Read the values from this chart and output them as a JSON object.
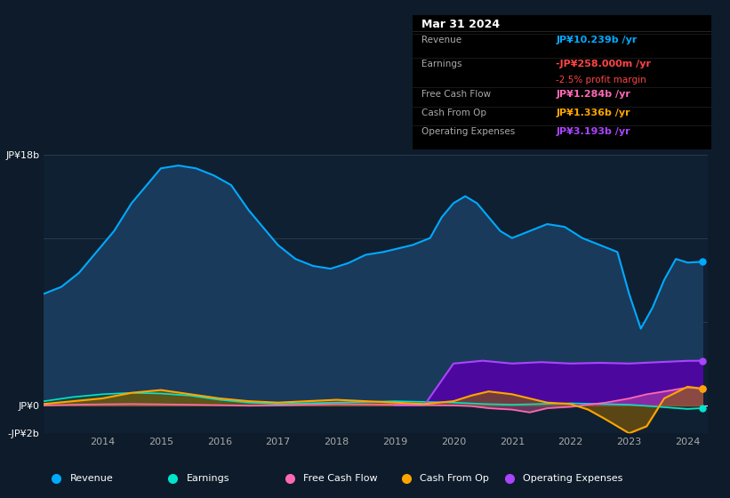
{
  "bg_color": "#0d1b2a",
  "plot_bg_color": "#0d1b2a",
  "chart_area_color": "#0f2033",
  "title": "Mar 31 2024",
  "table": {
    "Revenue": {
      "value": "JP¥10.239b /yr",
      "color": "#00aaff"
    },
    "Earnings": {
      "value": "-JP¥258.000m /yr",
      "color": "#ff4444",
      "sub": "-2.5% profit margin",
      "sub_color": "#ff4444"
    },
    "Free Cash Flow": {
      "value": "JP¥1.284b /yr",
      "color": "#ff69b4"
    },
    "Cash From Op": {
      "value": "JP¥1.336b /yr",
      "color": "#ffa500"
    },
    "Operating Expenses": {
      "value": "JP¥3.193b /yr",
      "color": "#aa44ff"
    }
  },
  "ylim": [
    -2,
    18
  ],
  "yticks": [
    -2,
    0,
    18
  ],
  "ytick_labels": [
    "-JP¥2b",
    "JP¥0",
    "JP¥18b"
  ],
  "xlabel_years": [
    2014,
    2015,
    2016,
    2017,
    2018,
    2019,
    2020,
    2021,
    2022,
    2023,
    2024
  ],
  "legend": [
    {
      "label": "Revenue",
      "color": "#00aaff"
    },
    {
      "label": "Earnings",
      "color": "#00e5cc"
    },
    {
      "label": "Free Cash Flow",
      "color": "#ff69b4"
    },
    {
      "label": "Cash From Op",
      "color": "#ffa500"
    },
    {
      "label": "Operating Expenses",
      "color": "#aa44ff"
    }
  ],
  "revenue": {
    "x": [
      2013.0,
      2013.3,
      2013.6,
      2013.9,
      2014.2,
      2014.5,
      2014.8,
      2015.0,
      2015.3,
      2015.6,
      2015.9,
      2016.2,
      2016.5,
      2016.8,
      2017.0,
      2017.3,
      2017.6,
      2017.9,
      2018.2,
      2018.5,
      2018.8,
      2019.0,
      2019.3,
      2019.6,
      2019.8,
      2020.0,
      2020.2,
      2020.4,
      2020.6,
      2020.8,
      2021.0,
      2021.3,
      2021.6,
      2021.9,
      2022.2,
      2022.5,
      2022.8,
      2023.0,
      2023.2,
      2023.4,
      2023.6,
      2023.8,
      2024.0,
      2024.25
    ],
    "y": [
      8.0,
      8.5,
      9.5,
      11.0,
      12.5,
      14.5,
      16.0,
      17.0,
      17.2,
      17.0,
      16.5,
      15.8,
      14.0,
      12.5,
      11.5,
      10.5,
      10.0,
      9.8,
      10.2,
      10.8,
      11.0,
      11.2,
      11.5,
      12.0,
      13.5,
      14.5,
      15.0,
      14.5,
      13.5,
      12.5,
      12.0,
      12.5,
      13.0,
      12.8,
      12.0,
      11.5,
      11.0,
      8.0,
      5.5,
      7.0,
      9.0,
      10.5,
      10.239,
      10.3
    ],
    "fill_color": "#1a3a5c",
    "line_color": "#00aaff"
  },
  "earnings": {
    "x": [
      2013.0,
      2013.5,
      2014.0,
      2014.5,
      2015.0,
      2015.5,
      2016.0,
      2016.5,
      2017.0,
      2017.5,
      2018.0,
      2018.5,
      2019.0,
      2019.5,
      2020.0,
      2020.5,
      2021.0,
      2021.5,
      2022.0,
      2022.5,
      2023.0,
      2023.5,
      2024.0,
      2024.25
    ],
    "y": [
      0.3,
      0.6,
      0.8,
      0.9,
      0.85,
      0.7,
      0.4,
      0.2,
      0.1,
      0.15,
      0.2,
      0.25,
      0.3,
      0.25,
      0.2,
      0.1,
      0.05,
      0.1,
      0.15,
      0.1,
      0.05,
      -0.1,
      -0.258,
      -0.2
    ],
    "fill_color": "#1a4a3a",
    "line_color": "#00e5cc"
  },
  "fcf": {
    "x": [
      2013.0,
      2013.5,
      2014.0,
      2014.5,
      2015.0,
      2015.5,
      2016.0,
      2016.5,
      2017.0,
      2017.5,
      2018.0,
      2018.5,
      2019.0,
      2019.5,
      2020.0,
      2020.3,
      2020.6,
      2021.0,
      2021.3,
      2021.6,
      2022.0,
      2022.3,
      2022.6,
      2023.0,
      2023.3,
      2023.6,
      2024.0,
      2024.25
    ],
    "y": [
      0.0,
      0.05,
      0.08,
      0.1,
      0.08,
      0.05,
      0.02,
      -0.02,
      0.0,
      0.05,
      0.1,
      0.08,
      0.05,
      0.03,
      0.0,
      -0.05,
      -0.2,
      -0.3,
      -0.5,
      -0.2,
      -0.1,
      0.05,
      0.2,
      0.5,
      0.8,
      1.0,
      1.284,
      1.2
    ],
    "fill_color": "#ff69b4",
    "line_color": "#ff69b4"
  },
  "cashfromop": {
    "x": [
      2013.0,
      2013.5,
      2014.0,
      2014.5,
      2015.0,
      2015.5,
      2016.0,
      2016.5,
      2017.0,
      2017.5,
      2018.0,
      2018.5,
      2019.0,
      2019.5,
      2020.0,
      2020.3,
      2020.6,
      2021.0,
      2021.3,
      2021.6,
      2022.0,
      2022.3,
      2022.6,
      2023.0,
      2023.3,
      2023.6,
      2024.0,
      2024.25
    ],
    "y": [
      0.1,
      0.3,
      0.5,
      0.9,
      1.1,
      0.8,
      0.5,
      0.3,
      0.2,
      0.3,
      0.4,
      0.3,
      0.2,
      0.1,
      0.3,
      0.7,
      1.0,
      0.8,
      0.5,
      0.2,
      0.1,
      -0.3,
      -1.0,
      -2.0,
      -1.5,
      0.5,
      1.336,
      1.2
    ],
    "fill_color": "#8b6000",
    "line_color": "#ffa500"
  },
  "opex": {
    "x": [
      2019.0,
      2019.5,
      2020.0,
      2020.5,
      2021.0,
      2021.5,
      2022.0,
      2022.5,
      2023.0,
      2023.5,
      2024.0,
      2024.25
    ],
    "y": [
      0.0,
      0.0,
      3.0,
      3.2,
      3.0,
      3.1,
      3.0,
      3.05,
      3.0,
      3.1,
      3.193,
      3.2
    ],
    "fill_color": "#5500aa",
    "line_color": "#aa44ff"
  }
}
